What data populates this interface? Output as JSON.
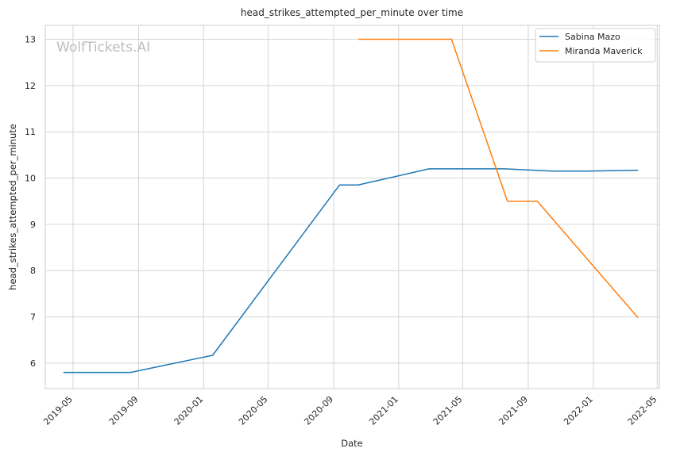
{
  "watermark": "WolfTickets.AI",
  "chart_data": {
    "type": "line",
    "title": "head_strikes_attempted_per_minute over time",
    "xlabel": "Date",
    "ylabel": "head_strikes_attempted_per_minute",
    "x_ticks": [
      "2019-05",
      "2019-09",
      "2020-01",
      "2020-05",
      "2020-09",
      "2021-01",
      "2021-05",
      "2021-09",
      "2022-01",
      "2022-05"
    ],
    "y_ticks": [
      6,
      7,
      8,
      9,
      10,
      11,
      12,
      13
    ],
    "xlim": [
      "2019-03-10",
      "2022-05-05"
    ],
    "ylim": [
      5.45,
      13.3
    ],
    "grid": true,
    "legend_position": "top-right",
    "series": [
      {
        "name": "Sabina Mazo",
        "color": "#1f77b4",
        "points": [
          {
            "x": "2019-04-13",
            "y": 5.8
          },
          {
            "x": "2019-08-17",
            "y": 5.8
          },
          {
            "x": "2020-01-18",
            "y": 6.17
          },
          {
            "x": "2020-09-12",
            "y": 9.85
          },
          {
            "x": "2020-10-17",
            "y": 9.85
          },
          {
            "x": "2021-02-27",
            "y": 10.2
          },
          {
            "x": "2021-07-17",
            "y": 10.2
          },
          {
            "x": "2021-10-16",
            "y": 10.15
          },
          {
            "x": "2021-12-18",
            "y": 10.15
          },
          {
            "x": "2022-03-26",
            "y": 10.17
          }
        ]
      },
      {
        "name": "Miranda Maverick",
        "color": "#ff7f0e",
        "points": [
          {
            "x": "2020-10-17",
            "y": 13.0
          },
          {
            "x": "2021-04-10",
            "y": 13.0
          },
          {
            "x": "2021-07-24",
            "y": 9.5
          },
          {
            "x": "2021-09-18",
            "y": 9.5
          },
          {
            "x": "2022-03-26",
            "y": 6.98
          }
        ]
      }
    ]
  }
}
